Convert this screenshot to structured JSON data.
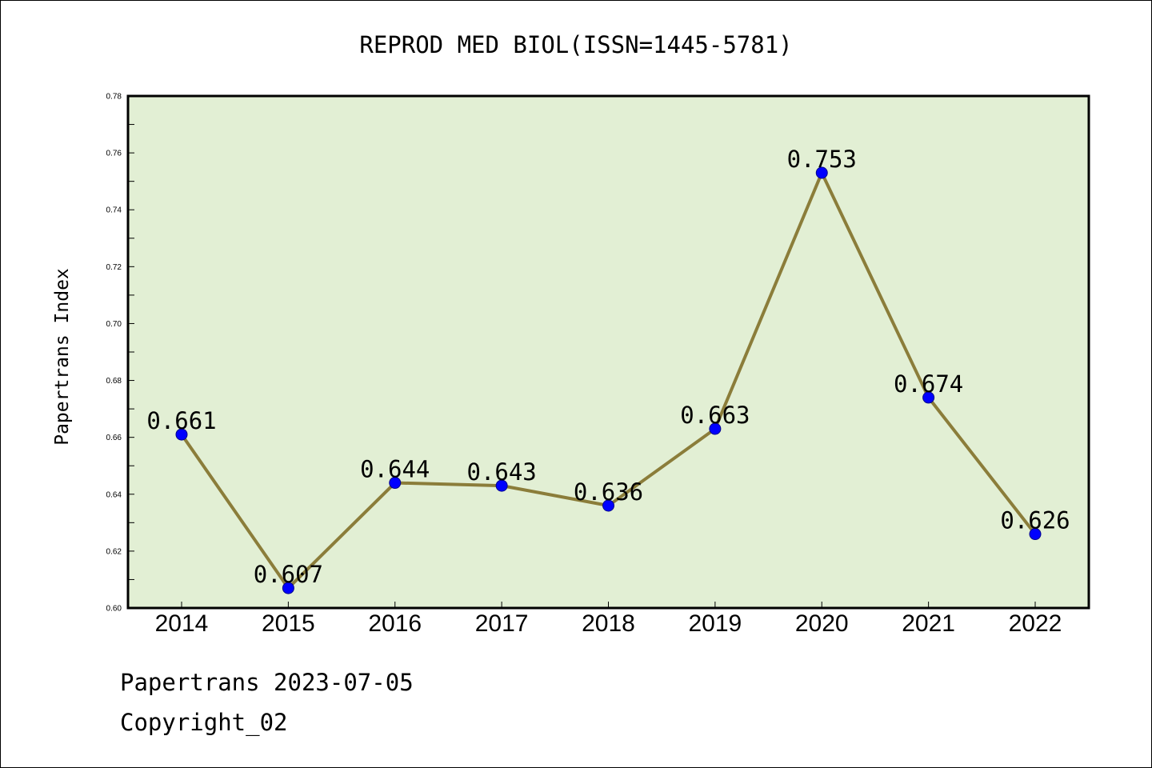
{
  "chart_data": {
    "type": "line",
    "title": "REPROD MED BIOL(ISSN=1445-5781)",
    "ylabel": "Papertrans Index",
    "xlabel": "",
    "categories": [
      "2014",
      "2015",
      "2016",
      "2017",
      "2018",
      "2019",
      "2020",
      "2021",
      "2022"
    ],
    "values": [
      0.661,
      0.607,
      0.644,
      0.643,
      0.636,
      0.663,
      0.753,
      0.674,
      0.626
    ],
    "data_labels": [
      "0.661",
      "0.607",
      "0.644",
      "0.643",
      "0.636",
      "0.663",
      "0.753",
      "0.674",
      "0.626"
    ],
    "ylim": [
      0.6,
      0.78
    ],
    "yticks": [
      "0.60",
      "0.62",
      "0.64",
      "0.66",
      "0.68",
      "0.70",
      "0.72",
      "0.74",
      "0.76",
      "0.78"
    ],
    "grid": false,
    "legend": "none",
    "colors": {
      "plot_background": "#e2efd4",
      "line": "#8b7d3a",
      "marker": "#0000ff"
    }
  },
  "footer": {
    "line1": "Papertrans 2023-07-05",
    "line2": "Copyright_02"
  }
}
